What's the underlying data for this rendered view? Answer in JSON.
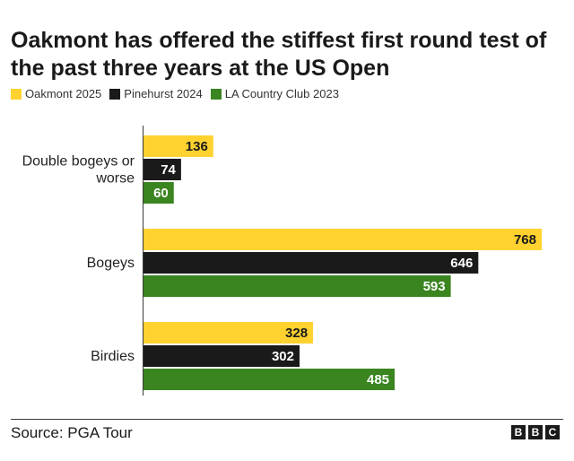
{
  "title": "Oakmont has offered the stiffest first round test of the past three years at the US Open",
  "legend": [
    {
      "label": "Oakmont 2025",
      "color": "#FFD230"
    },
    {
      "label": "Pinehurst 2024",
      "color": "#1A1A1A"
    },
    {
      "label": "LA Country Club 2023",
      "color": "#3A8520"
    }
  ],
  "source": "Source: PGA Tour",
  "logo": {
    "letters": [
      "B",
      "B",
      "C"
    ]
  },
  "chart_data": {
    "type": "bar",
    "orientation": "horizontal",
    "title": "Oakmont has offered the stiffest first round test of the past three years at the US Open",
    "categories": [
      "Double bogeys or worse",
      "Bogeys",
      "Birdies"
    ],
    "category_lines": [
      [
        "Double bogeys or",
        "worse"
      ],
      [
        "Bogeys"
      ],
      [
        "Birdies"
      ]
    ],
    "series": [
      {
        "name": "Oakmont 2025",
        "color": "#FFD230",
        "label_color": "#1A1A1A",
        "values": [
          136,
          768,
          328
        ]
      },
      {
        "name": "Pinehurst 2024",
        "color": "#1A1A1A",
        "label_color": "#FFFFFF",
        "values": [
          74,
          646,
          302
        ]
      },
      {
        "name": "LA Country Club 2023",
        "color": "#3A8520",
        "label_color": "#FFFFFF",
        "values": [
          60,
          593,
          485
        ]
      }
    ],
    "xlim": [
      0,
      768
    ],
    "grid": false,
    "legend_position": "top-left"
  }
}
